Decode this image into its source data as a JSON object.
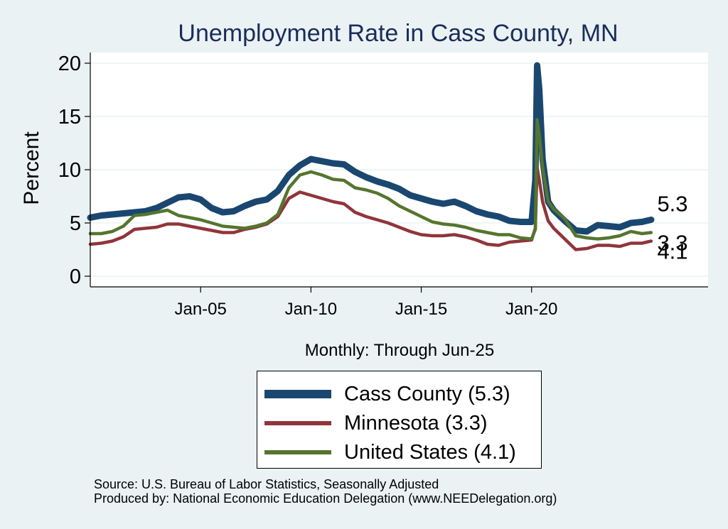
{
  "chart_data": {
    "type": "line",
    "title": "Unemployment Rate in Cass  County, MN",
    "ylabel": "Percent",
    "xlabel": "Monthly: Through Jun-25",
    "ylim": [
      -1,
      21
    ],
    "xlim": [
      2000.0,
      2028.0
    ],
    "grid": true,
    "y_ticks": [
      {
        "value": 0,
        "label": "0"
      },
      {
        "value": 5,
        "label": "5"
      },
      {
        "value": 10,
        "label": "10"
      },
      {
        "value": 15,
        "label": "15"
      },
      {
        "value": 20,
        "label": "20"
      }
    ],
    "x_ticks": [
      {
        "value": 2005.0,
        "label": "Jan-05"
      },
      {
        "value": 2010.0,
        "label": "Jan-10"
      },
      {
        "value": 2015.0,
        "label": "Jan-15"
      },
      {
        "value": 2020.0,
        "label": "Jan-20"
      }
    ],
    "series": [
      {
        "name": "Cass  County",
        "legend": "Cass  County (5.3)",
        "color": "#1a476f",
        "end_label": "5.3",
        "points": [
          [
            2000.0,
            5.5
          ],
          [
            2000.5,
            5.7
          ],
          [
            2001.0,
            5.8
          ],
          [
            2001.5,
            5.9
          ],
          [
            2002.0,
            6.0
          ],
          [
            2002.5,
            6.1
          ],
          [
            2003.0,
            6.4
          ],
          [
            2003.5,
            6.9
          ],
          [
            2004.0,
            7.4
          ],
          [
            2004.5,
            7.5
          ],
          [
            2005.0,
            7.2
          ],
          [
            2005.5,
            6.4
          ],
          [
            2006.0,
            6.0
          ],
          [
            2006.5,
            6.1
          ],
          [
            2007.0,
            6.6
          ],
          [
            2007.5,
            7.0
          ],
          [
            2008.0,
            7.2
          ],
          [
            2008.5,
            8.0
          ],
          [
            2009.0,
            9.5
          ],
          [
            2009.5,
            10.4
          ],
          [
            2010.0,
            11.0
          ],
          [
            2010.5,
            10.8
          ],
          [
            2011.0,
            10.6
          ],
          [
            2011.5,
            10.5
          ],
          [
            2012.0,
            9.8
          ],
          [
            2012.5,
            9.3
          ],
          [
            2013.0,
            8.9
          ],
          [
            2013.5,
            8.6
          ],
          [
            2014.0,
            8.2
          ],
          [
            2014.5,
            7.6
          ],
          [
            2015.0,
            7.3
          ],
          [
            2015.5,
            7.0
          ],
          [
            2016.0,
            6.8
          ],
          [
            2016.5,
            7.0
          ],
          [
            2017.0,
            6.6
          ],
          [
            2017.5,
            6.1
          ],
          [
            2018.0,
            5.8
          ],
          [
            2018.5,
            5.6
          ],
          [
            2019.0,
            5.2
          ],
          [
            2019.5,
            5.1
          ],
          [
            2020.0,
            5.1
          ],
          [
            2020.17,
            9.0
          ],
          [
            2020.25,
            19.8
          ],
          [
            2020.35,
            17.5
          ],
          [
            2020.5,
            11.0
          ],
          [
            2020.75,
            7.0
          ],
          [
            2021.0,
            6.2
          ],
          [
            2021.5,
            5.2
          ],
          [
            2022.0,
            4.3
          ],
          [
            2022.5,
            4.2
          ],
          [
            2023.0,
            4.8
          ],
          [
            2023.5,
            4.7
          ],
          [
            2024.0,
            4.6
          ],
          [
            2024.5,
            5.0
          ],
          [
            2025.0,
            5.1
          ],
          [
            2025.42,
            5.3
          ]
        ]
      },
      {
        "name": "Minnesota",
        "legend": "Minnesota (3.3)",
        "color": "#90353b",
        "end_label": "3.3",
        "points": [
          [
            2000.0,
            3.0
          ],
          [
            2000.5,
            3.1
          ],
          [
            2001.0,
            3.3
          ],
          [
            2001.5,
            3.7
          ],
          [
            2002.0,
            4.4
          ],
          [
            2002.5,
            4.5
          ],
          [
            2003.0,
            4.6
          ],
          [
            2003.5,
            4.9
          ],
          [
            2004.0,
            4.9
          ],
          [
            2004.5,
            4.7
          ],
          [
            2005.0,
            4.5
          ],
          [
            2005.5,
            4.3
          ],
          [
            2006.0,
            4.1
          ],
          [
            2006.5,
            4.1
          ],
          [
            2007.0,
            4.4
          ],
          [
            2007.5,
            4.6
          ],
          [
            2008.0,
            4.9
          ],
          [
            2008.5,
            5.6
          ],
          [
            2009.0,
            7.3
          ],
          [
            2009.5,
            7.9
          ],
          [
            2010.0,
            7.6
          ],
          [
            2010.5,
            7.3
          ],
          [
            2011.0,
            7.0
          ],
          [
            2011.5,
            6.8
          ],
          [
            2012.0,
            6.0
          ],
          [
            2012.5,
            5.6
          ],
          [
            2013.0,
            5.3
          ],
          [
            2013.5,
            5.0
          ],
          [
            2014.0,
            4.6
          ],
          [
            2014.5,
            4.2
          ],
          [
            2015.0,
            3.9
          ],
          [
            2015.5,
            3.8
          ],
          [
            2016.0,
            3.8
          ],
          [
            2016.5,
            3.9
          ],
          [
            2017.0,
            3.7
          ],
          [
            2017.5,
            3.4
          ],
          [
            2018.0,
            3.0
          ],
          [
            2018.5,
            2.9
          ],
          [
            2019.0,
            3.2
          ],
          [
            2019.5,
            3.3
          ],
          [
            2020.0,
            3.4
          ],
          [
            2020.17,
            4.5
          ],
          [
            2020.25,
            10.2
          ],
          [
            2020.35,
            9.0
          ],
          [
            2020.5,
            7.0
          ],
          [
            2020.75,
            5.2
          ],
          [
            2021.0,
            4.5
          ],
          [
            2021.5,
            3.5
          ],
          [
            2022.0,
            2.5
          ],
          [
            2022.5,
            2.6
          ],
          [
            2023.0,
            2.9
          ],
          [
            2023.5,
            2.9
          ],
          [
            2024.0,
            2.8
          ],
          [
            2024.5,
            3.1
          ],
          [
            2025.0,
            3.1
          ],
          [
            2025.42,
            3.3
          ]
        ]
      },
      {
        "name": "United States",
        "legend": "United States (4.1)",
        "color": "#55752f",
        "end_label": "4.1",
        "points": [
          [
            2000.0,
            4.0
          ],
          [
            2000.5,
            4.0
          ],
          [
            2001.0,
            4.2
          ],
          [
            2001.5,
            4.7
          ],
          [
            2002.0,
            5.7
          ],
          [
            2002.5,
            5.8
          ],
          [
            2003.0,
            6.0
          ],
          [
            2003.5,
            6.2
          ],
          [
            2004.0,
            5.7
          ],
          [
            2004.5,
            5.5
          ],
          [
            2005.0,
            5.3
          ],
          [
            2005.5,
            5.0
          ],
          [
            2006.0,
            4.7
          ],
          [
            2006.5,
            4.6
          ],
          [
            2007.0,
            4.5
          ],
          [
            2007.5,
            4.7
          ],
          [
            2008.0,
            5.0
          ],
          [
            2008.5,
            5.8
          ],
          [
            2009.0,
            8.3
          ],
          [
            2009.5,
            9.5
          ],
          [
            2010.0,
            9.8
          ],
          [
            2010.5,
            9.5
          ],
          [
            2011.0,
            9.1
          ],
          [
            2011.5,
            9.0
          ],
          [
            2012.0,
            8.3
          ],
          [
            2012.5,
            8.1
          ],
          [
            2013.0,
            7.8
          ],
          [
            2013.5,
            7.3
          ],
          [
            2014.0,
            6.6
          ],
          [
            2014.5,
            6.1
          ],
          [
            2015.0,
            5.6
          ],
          [
            2015.5,
            5.1
          ],
          [
            2016.0,
            4.9
          ],
          [
            2016.5,
            4.8
          ],
          [
            2017.0,
            4.6
          ],
          [
            2017.5,
            4.3
          ],
          [
            2018.0,
            4.1
          ],
          [
            2018.5,
            3.9
          ],
          [
            2019.0,
            3.9
          ],
          [
            2019.5,
            3.6
          ],
          [
            2020.0,
            3.5
          ],
          [
            2020.17,
            4.4
          ],
          [
            2020.25,
            14.7
          ],
          [
            2020.35,
            13.2
          ],
          [
            2020.5,
            10.2
          ],
          [
            2020.75,
            7.0
          ],
          [
            2021.0,
            6.3
          ],
          [
            2021.5,
            5.4
          ],
          [
            2022.0,
            3.8
          ],
          [
            2022.5,
            3.6
          ],
          [
            2023.0,
            3.5
          ],
          [
            2023.5,
            3.6
          ],
          [
            2024.0,
            3.8
          ],
          [
            2024.5,
            4.2
          ],
          [
            2025.0,
            4.0
          ],
          [
            2025.42,
            4.1
          ]
        ]
      }
    ]
  },
  "source": {
    "line1": "Source: U.S. Bureau of Labor Statistics, Seasonally Adjusted",
    "line2": "Produced by: National Economic Education Delegation (www.NEEDelegation.org)"
  }
}
